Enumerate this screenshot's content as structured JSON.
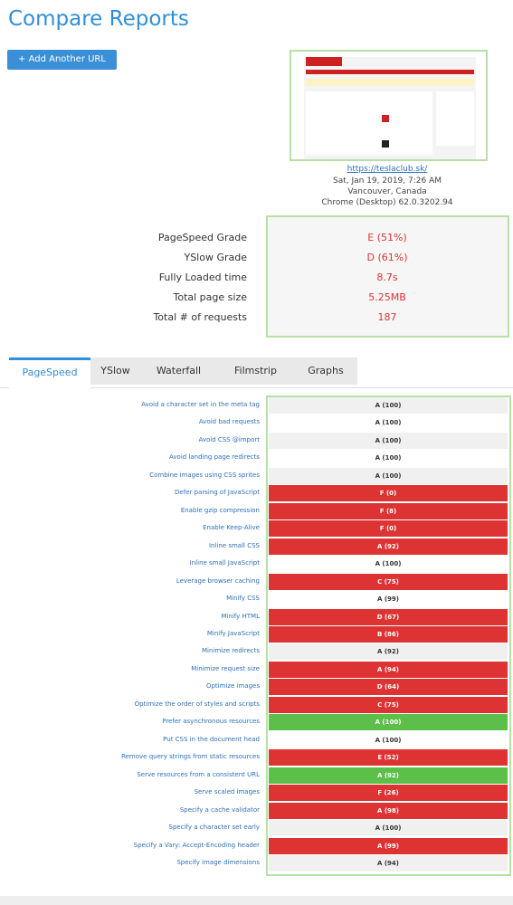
{
  "header": {
    "title": "Compare Reports",
    "button": "Add Another URL"
  },
  "report": {
    "url": "https://teslaclub.sk/",
    "date": "Sat, Jan 19, 2019, 7:26 AM",
    "location": "Vancouver, Canada",
    "browser": "Chrome (Desktop) 62.0.3202.94"
  },
  "summary": {
    "rows": [
      [
        "PageSpeed Grade",
        "E (51%)"
      ],
      [
        "YSlow Grade",
        "D (61%)"
      ],
      [
        "Fully Loaded time",
        "8.7s"
      ],
      [
        "Total page size",
        "5.25MB"
      ],
      [
        "Total # of requests",
        "187"
      ]
    ]
  },
  "tabs": [
    "PageSpeed",
    "YSlow",
    "Waterfall",
    "Filmstrip",
    "Graphs"
  ],
  "table": {
    "rows": [
      {
        "label": "Avoid a character set in the meta tag",
        "grade": "A (100)",
        "color": "#f0f0f0"
      },
      {
        "label": "Avoid bad requests",
        "grade": "A (100)",
        "color": "#ffffff"
      },
      {
        "label": "Avoid CSS @import",
        "grade": "A (100)",
        "color": "#f0f0f0"
      },
      {
        "label": "Avoid landing page redirects",
        "grade": "A (100)",
        "color": "#ffffff"
      },
      {
        "label": "Combine images using CSS sprites",
        "grade": "A (100)",
        "color": "#f0f0f0"
      },
      {
        "label": "Defer parsing of JavaScript",
        "grade": "F (0)",
        "color": "#dd3333"
      },
      {
        "label": "Enable gzip compression",
        "grade": "F (8)",
        "color": "#dd3333"
      },
      {
        "label": "Enable Keep-Alive",
        "grade": "F (0)",
        "color": "#dd3333"
      },
      {
        "label": "Inline small CSS",
        "grade": "A (92)",
        "color": "#dd3333"
      },
      {
        "label": "Inline small JavaScript",
        "grade": "A (100)",
        "color": "#ffffff"
      },
      {
        "label": "Leverage browser caching",
        "grade": "C (75)",
        "color": "#dd3333"
      },
      {
        "label": "Minify CSS",
        "grade": "A (99)",
        "color": "#ffffff"
      },
      {
        "label": "Minify HTML",
        "grade": "D (67)",
        "color": "#dd3333"
      },
      {
        "label": "Minify JavaScript",
        "grade": "B (86)",
        "color": "#dd3333"
      },
      {
        "label": "Minimize redirects",
        "grade": "A (92)",
        "color": "#f0f0f0"
      },
      {
        "label": "Minimize request size",
        "grade": "A (94)",
        "color": "#dd3333"
      },
      {
        "label": "Optimize images",
        "grade": "D (64)",
        "color": "#dd3333"
      },
      {
        "label": "Optimize the order of styles and scripts",
        "grade": "C (75)",
        "color": "#dd3333"
      },
      {
        "label": "Prefer asynchronous resources",
        "grade": "A (100)",
        "color": "#5cbf4a"
      },
      {
        "label": "Put CSS in the document head",
        "grade": "A (100)",
        "color": "#ffffff"
      },
      {
        "label": "Remove query strings from static resources",
        "grade": "E (52)",
        "color": "#dd3333"
      },
      {
        "label": "Serve resources from a consistent URL",
        "grade": "A (92)",
        "color": "#5cbf4a"
      },
      {
        "label": "Serve scaled images",
        "grade": "F (26)",
        "color": "#dd3333"
      },
      {
        "label": "Specify a cache validator",
        "grade": "A (98)",
        "color": "#dd3333"
      },
      {
        "label": "Specify a character set early",
        "grade": "A (100)",
        "color": "#f0f0f0"
      },
      {
        "label": "Specify a Vary: Accept-Encoding header",
        "grade": "A (99)",
        "color": "#dd3333"
      },
      {
        "label": "Specify image dimensions",
        "grade": "A (94)",
        "color": "#f0f0f0"
      }
    ]
  }
}
